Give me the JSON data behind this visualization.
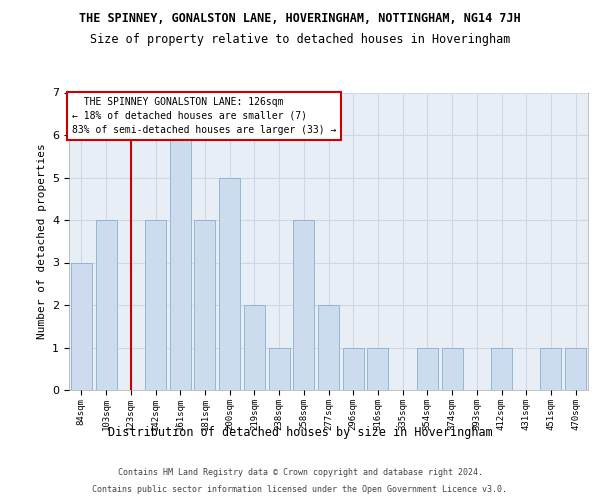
{
  "title_line1": "THE SPINNEY, GONALSTON LANE, HOVERINGHAM, NOTTINGHAM, NG14 7JH",
  "title_line2": "Size of property relative to detached houses in Hoveringham",
  "xlabel": "Distribution of detached houses by size in Hoveringham",
  "ylabel": "Number of detached properties",
  "categories": [
    "84sqm",
    "103sqm",
    "123sqm",
    "142sqm",
    "161sqm",
    "181sqm",
    "200sqm",
    "219sqm",
    "238sqm",
    "258sqm",
    "277sqm",
    "296sqm",
    "316sqm",
    "335sqm",
    "354sqm",
    "374sqm",
    "393sqm",
    "412sqm",
    "431sqm",
    "451sqm",
    "470sqm"
  ],
  "values": [
    3,
    4,
    0,
    4,
    6,
    4,
    5,
    2,
    1,
    4,
    2,
    1,
    1,
    0,
    1,
    1,
    0,
    1,
    0,
    1,
    1
  ],
  "bar_color": "#ccdcee",
  "bar_edgecolor": "#8ab0cc",
  "vline_color": "#cc0000",
  "annotation_box_edgecolor": "#cc0000",
  "subject_label": "THE SPINNEY GONALSTON LANE: 126sqm",
  "pct_smaller": "18% of detached houses are smaller (7)",
  "pct_larger": "83% of semi-detached houses are larger (33)",
  "ylim": [
    0,
    7
  ],
  "yticks": [
    0,
    1,
    2,
    3,
    4,
    5,
    6,
    7
  ],
  "vline_pos": 2.0,
  "background_color": "#e8eef6",
  "grid_color": "#d0d8e8",
  "title_fontsize": 8.5,
  "subtitle_fontsize": 8.5,
  "ylabel_fontsize": 8,
  "xlabel_fontsize": 8.5,
  "tick_fontsize": 6.5,
  "annot_fontsize": 7,
  "footer_fontsize": 6,
  "footer_line1": "Contains HM Land Registry data © Crown copyright and database right 2024.",
  "footer_line2": "Contains public sector information licensed under the Open Government Licence v3.0."
}
